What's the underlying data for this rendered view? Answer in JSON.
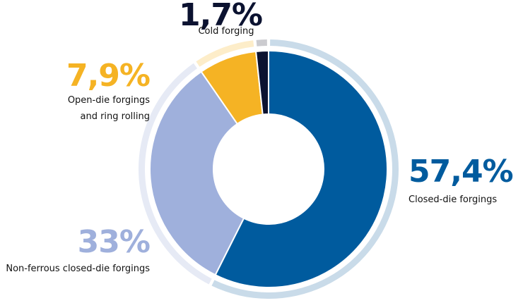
{
  "chart_data": {
    "type": "donut",
    "categories": [
      "Closed-die forgings",
      "Non-ferrous closed-die forgings",
      "Open-die forgings and ring rolling",
      "Cold forging"
    ],
    "values": [
      57.4,
      33,
      7.9,
      1.7
    ],
    "value_labels": [
      "57,4%",
      "33%",
      "7,9%",
      "1,7%"
    ],
    "colors": [
      "#005b9e",
      "#9fb0dc",
      "#f5b324",
      "#0b1230"
    ],
    "ring_colors": [
      "#c9dbe9",
      "#e6eaf5",
      "#fdedc9",
      "#cbcbcf"
    ]
  }
}
